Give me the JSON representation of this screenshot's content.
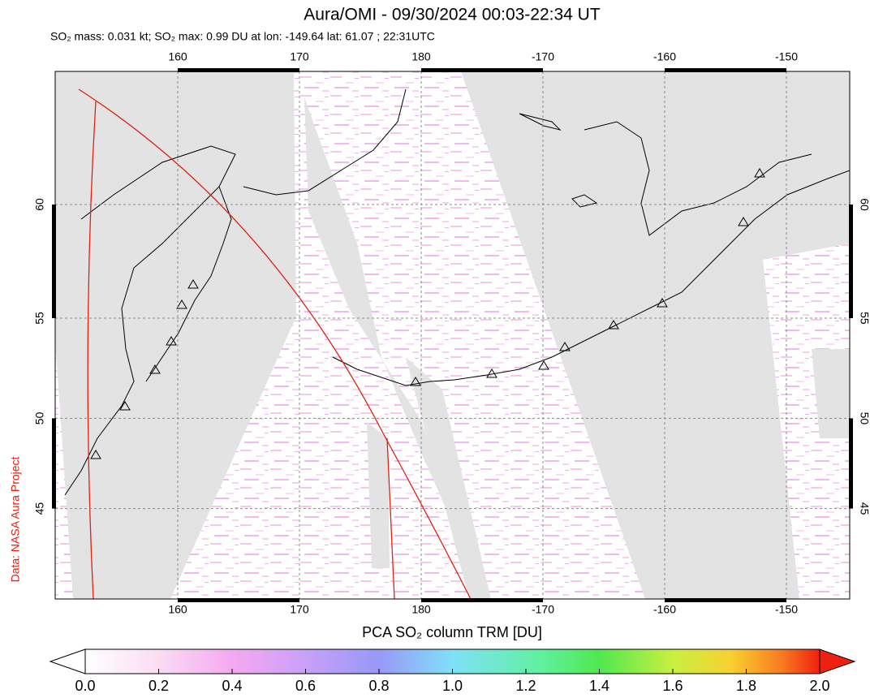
{
  "header": {
    "title": "Aura/OMI - 09/30/2024 00:03-22:34 UT",
    "subtitle": "SO₂ mass: 0.031 kt; SO₂ max: 0.99 DU at lon: -149.64 lat: 61.07 ; 22:31UTC"
  },
  "map": {
    "lon_ticks": [
      160,
      170,
      180,
      -170,
      -160,
      -150
    ],
    "lat_ticks": [
      60,
      55,
      50,
      45
    ],
    "credit": "Data: NASA Aura Project"
  },
  "colorbar": {
    "label": "PCA SO₂ column TRM [DU]",
    "range": [
      0,
      2
    ],
    "ticks": [
      {
        "value": 0,
        "label": "0.0"
      },
      {
        "value": 0.2,
        "label": "0.2"
      },
      {
        "value": 0.4,
        "label": "0.4"
      },
      {
        "value": 0.6,
        "label": "0.6"
      },
      {
        "value": 0.8,
        "label": "0.8"
      },
      {
        "value": 1,
        "label": "1.0"
      },
      {
        "value": 1.2,
        "label": "1.2"
      },
      {
        "value": 1.4,
        "label": "1.4"
      },
      {
        "value": 1.6,
        "label": "1.6"
      },
      {
        "value": 1.8,
        "label": "1.8"
      },
      {
        "value": 2,
        "label": "2.0"
      }
    ]
  }
}
